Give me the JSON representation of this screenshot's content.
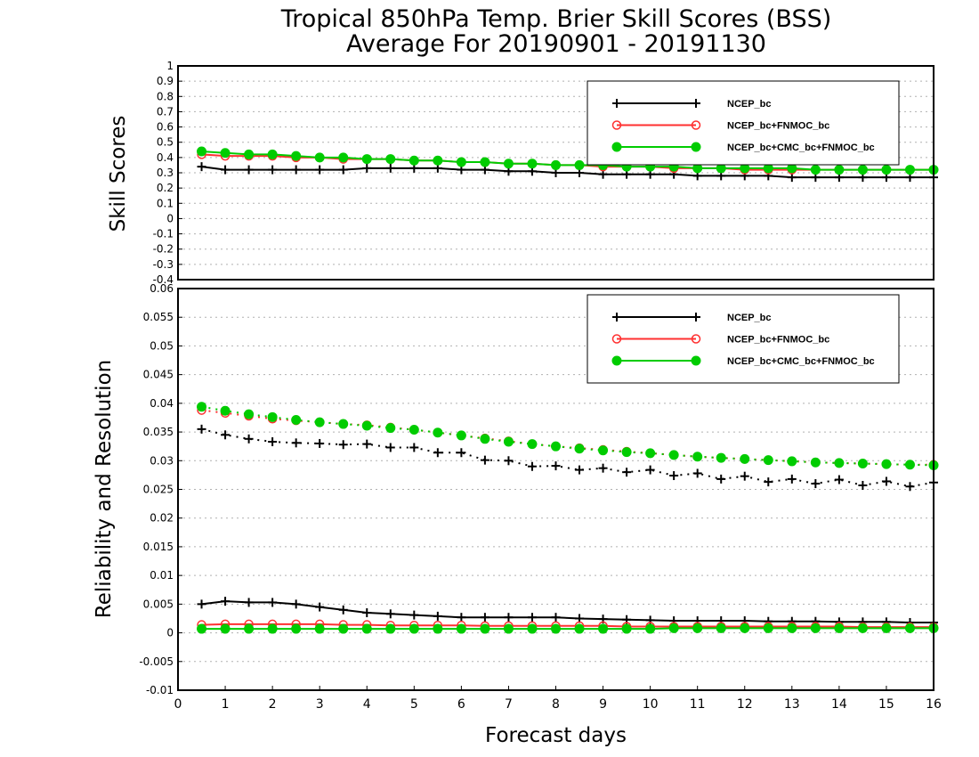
{
  "title_line1": "Tropical 850hPa Temp. Brier Skill Scores (BSS)",
  "title_line2": "Average For 20190901 - 20191130",
  "colors": {
    "ncep": "#000000",
    "fnmoc": "#ff3030",
    "cmc": "#00cc00",
    "grid": "#b0b0b0"
  },
  "chart_data": [
    {
      "type": "line",
      "panel": "top",
      "ylabel": "Skill Scores",
      "xlabel": "",
      "xlim": [
        0,
        16
      ],
      "ylim": [
        -0.4,
        1
      ],
      "yticks": [
        1,
        0.9,
        0.8,
        0.7,
        0.6,
        0.5,
        0.4,
        0.3,
        0.2,
        0.1,
        0,
        -0.1,
        -0.2,
        -0.3,
        -0.4
      ],
      "ytick_labels": [
        "1",
        "0.9",
        "0.8",
        "0.7",
        "0.6",
        "0.5",
        "0.4",
        "0.3",
        "0.2",
        "0.1",
        "0",
        "-0.1",
        "-0.2",
        "-0.3",
        "-0.4"
      ],
      "grid": true,
      "legend_position": "top-right",
      "x": [
        0.5,
        1,
        1.5,
        2,
        2.5,
        3,
        3.5,
        4,
        4.5,
        5,
        5.5,
        6,
        6.5,
        7,
        7.5,
        8,
        8.5,
        9,
        9.5,
        10,
        10.5,
        11,
        11.5,
        12,
        12.5,
        13,
        13.5,
        14,
        14.5,
        15,
        15.5,
        16
      ],
      "series": [
        {
          "name": "NCEP_bc",
          "color": "#000000",
          "marker": "plus",
          "style": "solid",
          "values": [
            0.34,
            0.32,
            0.32,
            0.32,
            0.32,
            0.32,
            0.32,
            0.33,
            0.33,
            0.33,
            0.33,
            0.32,
            0.32,
            0.31,
            0.31,
            0.3,
            0.3,
            0.29,
            0.29,
            0.29,
            0.29,
            0.28,
            0.28,
            0.28,
            0.28,
            0.27,
            0.27,
            0.27,
            0.27,
            0.27,
            0.27,
            0.27
          ]
        },
        {
          "name": "NCEP_bc+FNMOC_bc",
          "color": "#ff3030",
          "marker": "open-circle",
          "style": "solid",
          "values": [
            0.42,
            0.41,
            0.41,
            0.41,
            0.4,
            0.4,
            0.39,
            0.39,
            0.39,
            0.38,
            0.38,
            0.37,
            0.37,
            0.36,
            0.36,
            0.35,
            0.35,
            0.34,
            0.34,
            0.34,
            0.33,
            0.33,
            0.33,
            0.32,
            0.32,
            0.32,
            0.32,
            0.32,
            0.32,
            0.32,
            0.32,
            0.32
          ]
        },
        {
          "name": "NCEP_bc+CMC_bc+FNMOC_bc",
          "color": "#00cc00",
          "marker": "filled-circle",
          "style": "solid",
          "values": [
            0.44,
            0.43,
            0.42,
            0.42,
            0.41,
            0.4,
            0.4,
            0.39,
            0.39,
            0.38,
            0.38,
            0.37,
            0.37,
            0.36,
            0.36,
            0.35,
            0.35,
            0.35,
            0.34,
            0.34,
            0.34,
            0.33,
            0.33,
            0.33,
            0.33,
            0.33,
            0.32,
            0.32,
            0.32,
            0.32,
            0.32,
            0.32
          ]
        }
      ]
    },
    {
      "type": "line",
      "panel": "bottom",
      "ylabel": "Reliability and Resolution",
      "xlabel": "Forecast days",
      "xlim": [
        0,
        16
      ],
      "ylim": [
        -0.01,
        0.06
      ],
      "yticks": [
        0.06,
        0.055,
        0.05,
        0.045,
        0.04,
        0.035,
        0.03,
        0.025,
        0.02,
        0.015,
        0.01,
        0.005,
        0,
        -0.005,
        -0.01
      ],
      "ytick_labels": [
        "0.06",
        "0.055",
        "0.05",
        "0.045",
        "0.04",
        "0.035",
        "0.03",
        "0.025",
        "0.02",
        "0.015",
        "0.01",
        "0.005",
        "0",
        "-0.005",
        "-0.01"
      ],
      "xticks": [
        0,
        1,
        2,
        3,
        4,
        5,
        6,
        7,
        8,
        9,
        10,
        11,
        12,
        13,
        14,
        15,
        16
      ],
      "xtick_labels": [
        "0",
        "1",
        "2",
        "3",
        "4",
        "5",
        "6",
        "7",
        "8",
        "9",
        "10",
        "11",
        "12",
        "13",
        "14",
        "15",
        "16"
      ],
      "grid": true,
      "legend_position": "top-right",
      "x": [
        0.5,
        1,
        1.5,
        2,
        2.5,
        3,
        3.5,
        4,
        4.5,
        5,
        5.5,
        6,
        6.5,
        7,
        7.5,
        8,
        8.5,
        9,
        9.5,
        10,
        10.5,
        11,
        11.5,
        12,
        12.5,
        13,
        13.5,
        14,
        14.5,
        15,
        15.5,
        16
      ],
      "series": [
        {
          "name": "NCEP_bc",
          "color": "#000000",
          "marker": "plus",
          "style": "dotted",
          "measure": "resolution",
          "values": [
            0.0355,
            0.0345,
            0.0338,
            0.0333,
            0.0331,
            0.033,
            0.0328,
            0.0329,
            0.0323,
            0.0323,
            0.0314,
            0.0314,
            0.0301,
            0.03,
            0.029,
            0.0291,
            0.0284,
            0.0287,
            0.028,
            0.0284,
            0.0274,
            0.0278,
            0.0268,
            0.0273,
            0.0263,
            0.0268,
            0.026,
            0.0267,
            0.0257,
            0.0264,
            0.0255,
            0.0262
          ]
        },
        {
          "name": "NCEP_bc+FNMOC_bc",
          "color": "#ff3030",
          "marker": "open-circle",
          "style": "dotted",
          "measure": "resolution",
          "values": [
            0.0388,
            0.0383,
            0.0378,
            0.0373,
            0.037,
            0.0367,
            0.0364,
            0.0362,
            0.0358,
            0.0354,
            0.0349,
            0.0344,
            0.0339,
            0.0334,
            0.0329,
            0.0325,
            0.0322,
            0.0319,
            0.0316,
            0.0313,
            0.031,
            0.0307,
            0.0305,
            0.0303,
            0.0301,
            0.0299,
            0.0297,
            0.0296,
            0.0295,
            0.0294,
            0.0293,
            0.0293
          ]
        },
        {
          "name": "NCEP_bc+CMC_bc+FNMOC_bc",
          "color": "#00cc00",
          "marker": "filled-circle",
          "style": "dotted",
          "measure": "resolution",
          "values": [
            0.0394,
            0.0387,
            0.0381,
            0.0376,
            0.0371,
            0.0367,
            0.0364,
            0.0361,
            0.0357,
            0.0354,
            0.0349,
            0.0344,
            0.0338,
            0.0333,
            0.0329,
            0.0325,
            0.0321,
            0.0318,
            0.0315,
            0.0313,
            0.031,
            0.0307,
            0.0305,
            0.0303,
            0.0301,
            0.0299,
            0.0297,
            0.0296,
            0.0295,
            0.0294,
            0.0293,
            0.0292
          ]
        },
        {
          "name": "NCEP_bc",
          "color": "#000000",
          "marker": "plus",
          "style": "solid",
          "measure": "reliability",
          "values": [
            0.005,
            0.0055,
            0.0053,
            0.0053,
            0.005,
            0.0045,
            0.004,
            0.0035,
            0.0033,
            0.0031,
            0.0029,
            0.0027,
            0.0027,
            0.0027,
            0.0027,
            0.0027,
            0.0025,
            0.0024,
            0.0023,
            0.0022,
            0.0021,
            0.0021,
            0.0021,
            0.0021,
            0.002,
            0.002,
            0.002,
            0.0019,
            0.0019,
            0.0019,
            0.0018,
            0.0018
          ]
        },
        {
          "name": "NCEP_bc+FNMOC_bc",
          "color": "#ff3030",
          "marker": "open-circle",
          "style": "solid",
          "measure": "reliability",
          "values": [
            0.0014,
            0.0015,
            0.0015,
            0.0015,
            0.0015,
            0.0015,
            0.0014,
            0.0014,
            0.0013,
            0.0013,
            0.0013,
            0.0013,
            0.0012,
            0.0012,
            0.0012,
            0.0012,
            0.0012,
            0.0012,
            0.0011,
            0.0011,
            0.0011,
            0.0011,
            0.0011,
            0.0011,
            0.0011,
            0.0011,
            0.0011,
            0.0011,
            0.001,
            0.001,
            0.001,
            0.001
          ]
        },
        {
          "name": "NCEP_bc+CMC_bc+FNMOC_bc",
          "color": "#00cc00",
          "marker": "filled-circle",
          "style": "solid",
          "measure": "reliability",
          "values": [
            0.0007,
            0.0007,
            0.0007,
            0.0007,
            0.0007,
            0.0007,
            0.0007,
            0.0007,
            0.0007,
            0.0007,
            0.0007,
            0.0007,
            0.0007,
            0.0007,
            0.0007,
            0.0007,
            0.0007,
            0.0007,
            0.0007,
            0.0007,
            0.0008,
            0.0008,
            0.0008,
            0.0008,
            0.0008,
            0.0008,
            0.0008,
            0.0008,
            0.0008,
            0.0008,
            0.0008,
            0.0008
          ]
        }
      ]
    }
  ]
}
